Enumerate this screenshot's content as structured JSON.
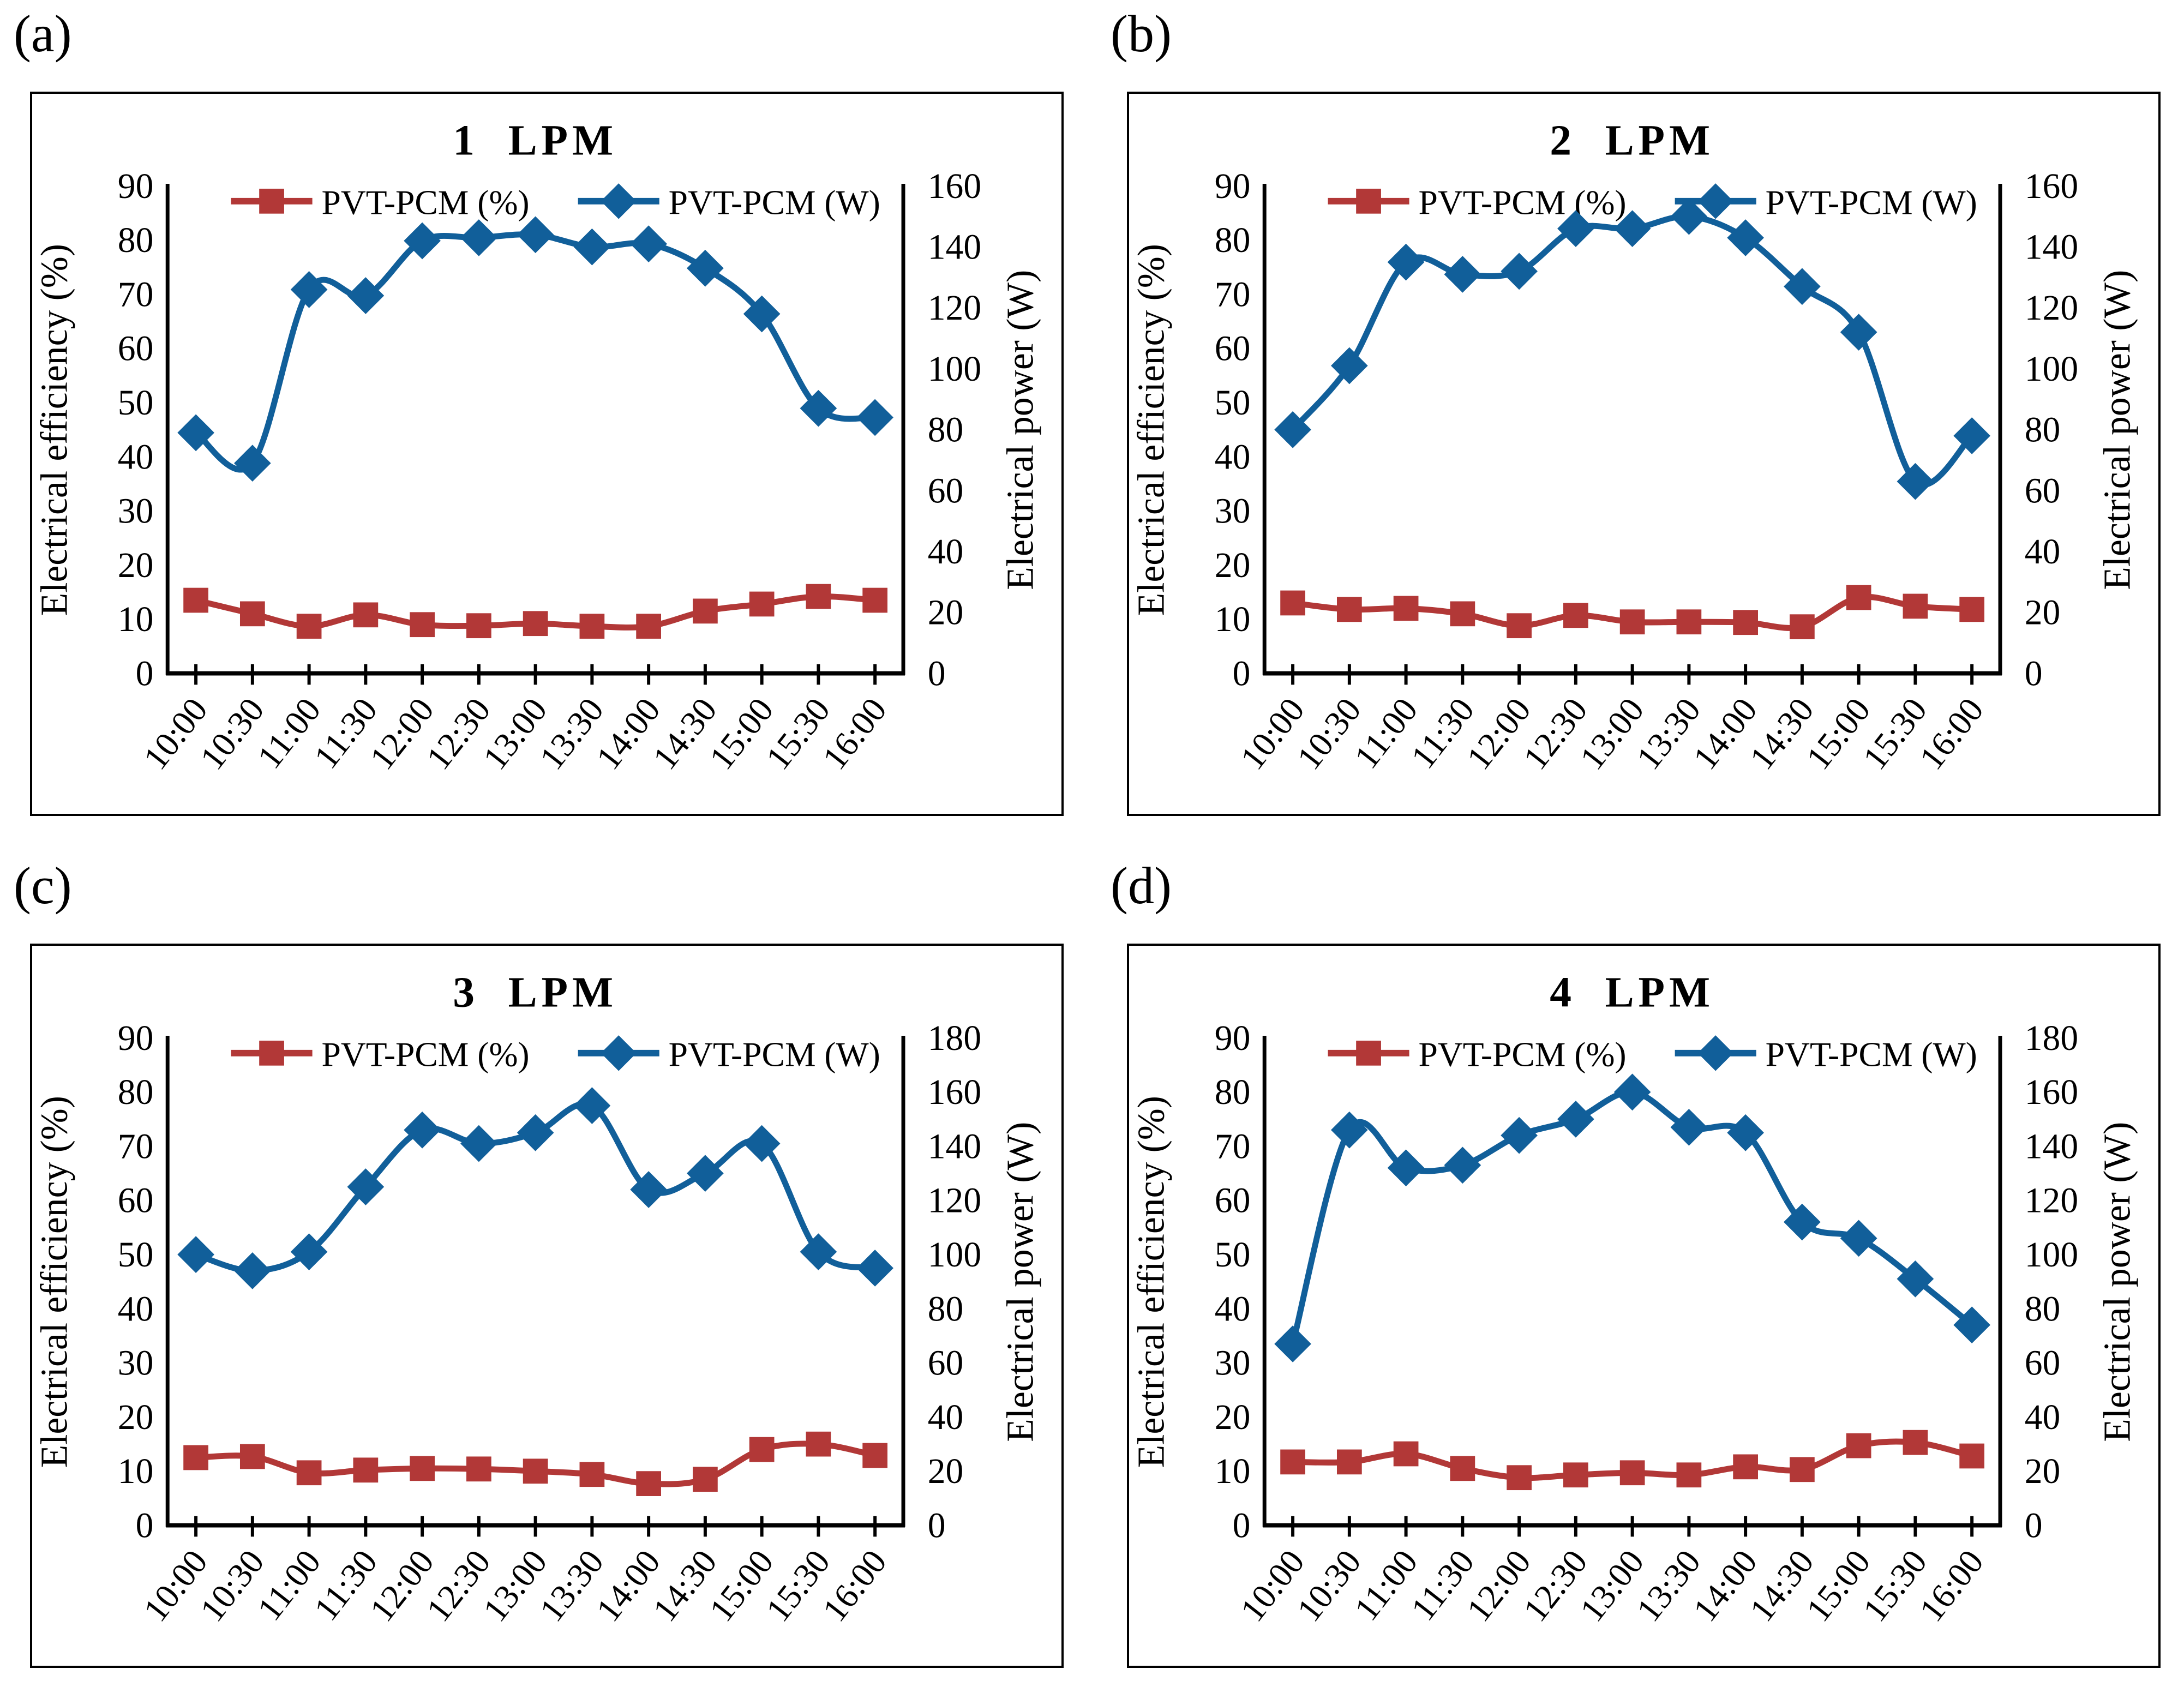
{
  "style": {
    "background": "#ffffff",
    "text_color": "#000000",
    "efficiency_color": "#b23837",
    "power_color": "#115f9a"
  },
  "chart_data": [
    {
      "type": "line",
      "panel_label": "(a)",
      "title": "1 LPM",
      "categories": [
        "10:00",
        "10:30",
        "11:00",
        "11:30",
        "12:00",
        "12:30",
        "13:00",
        "13:30",
        "14:00",
        "14:30",
        "15:00",
        "15:30",
        "16:00"
      ],
      "y_left": {
        "label": "Electrical efficiency (%)",
        "min": 0,
        "max": 90,
        "step": 10
      },
      "y_right": {
        "label": "Electrical power (W)",
        "min": 0,
        "max": 160,
        "step": 20
      },
      "legend_position": "top",
      "grid": false,
      "smooth": true,
      "series": [
        {
          "name": "PVT-PCM (%)",
          "axis": "left",
          "color": "#b23837",
          "marker": "square",
          "values": [
            13.5,
            11.0,
            8.7,
            10.8,
            9.0,
            8.8,
            9.2,
            8.7,
            8.7,
            11.5,
            12.8,
            14.2,
            13.5
          ]
        },
        {
          "name": "PVT-PCM (W)",
          "axis": "right",
          "color": "#115f9a",
          "marker": "diamond",
          "values": [
            79,
            69,
            126,
            124,
            142,
            143,
            144,
            140,
            141,
            133,
            118,
            87,
            84
          ]
        }
      ]
    },
    {
      "type": "line",
      "panel_label": "(b)",
      "title": "2 LPM",
      "categories": [
        "10:00",
        "10:30",
        "11:00",
        "11:30",
        "12:00",
        "12:30",
        "13:00",
        "13:30",
        "14:00",
        "14:30",
        "15:00",
        "15:30",
        "16:00"
      ],
      "y_left": {
        "label": "Electrical efficiency (%)",
        "min": 0,
        "max": 90,
        "step": 10
      },
      "y_right": {
        "label": "Electrical power (W)",
        "min": 0,
        "max": 160,
        "step": 20
      },
      "legend_position": "top",
      "grid": false,
      "smooth": true,
      "series": [
        {
          "name": "PVT-PCM (%)",
          "axis": "left",
          "color": "#b23837",
          "marker": "square",
          "values": [
            13.0,
            11.8,
            12.0,
            11.0,
            8.8,
            10.7,
            9.5,
            9.5,
            9.4,
            8.6,
            14.0,
            12.4,
            11.8
          ]
        },
        {
          "name": "PVT-PCM (W)",
          "axis": "right",
          "color": "#115f9a",
          "marker": "diamond",
          "values": [
            80,
            101,
            135,
            131,
            132,
            146,
            146,
            150,
            143,
            127,
            112,
            63,
            78
          ]
        }
      ]
    },
    {
      "type": "line",
      "panel_label": "(c)",
      "title": "3 LPM",
      "categories": [
        "10:00",
        "10:30",
        "11:00",
        "11:30",
        "12:00",
        "12:30",
        "13:00",
        "13:30",
        "14:00",
        "14:30",
        "15:00",
        "15:30",
        "16:00"
      ],
      "y_left": {
        "label": "Electrical efficiency (%)",
        "min": 0,
        "max": 90,
        "step": 10
      },
      "y_right": {
        "label": "Electrical power (W)",
        "min": 0,
        "max": 180,
        "step": 20
      },
      "legend_position": "top",
      "grid": false,
      "smooth": true,
      "series": [
        {
          "name": "PVT-PCM (%)",
          "axis": "left",
          "color": "#b23837",
          "marker": "square",
          "values": [
            12.5,
            12.7,
            9.7,
            10.2,
            10.5,
            10.4,
            10.0,
            9.4,
            7.7,
            8.5,
            14.0,
            15.0,
            12.9
          ]
        },
        {
          "name": "PVT-PCM (W)",
          "axis": "right",
          "color": "#115f9a",
          "marker": "diamond",
          "values": [
            100,
            94,
            101,
            125,
            146,
            141,
            145,
            155,
            124,
            130,
            141,
            101,
            95
          ]
        }
      ]
    },
    {
      "type": "line",
      "panel_label": "(d)",
      "title": "4 LPM",
      "categories": [
        "10:00",
        "10:30",
        "11:00",
        "11:30",
        "12:00",
        "12:30",
        "13:00",
        "13:30",
        "14:00",
        "14:30",
        "15:00",
        "15:30",
        "16:00"
      ],
      "y_left": {
        "label": "Electrical efficiency (%)",
        "min": 0,
        "max": 90,
        "step": 10
      },
      "y_right": {
        "label": "Electrical power (W)",
        "min": 0,
        "max": 180,
        "step": 20
      },
      "legend_position": "top",
      "grid": false,
      "smooth": true,
      "series": [
        {
          "name": "PVT-PCM (%)",
          "axis": "left",
          "color": "#b23837",
          "marker": "square",
          "values": [
            11.7,
            11.7,
            13.2,
            10.5,
            8.8,
            9.3,
            9.7,
            9.3,
            10.8,
            10.3,
            14.7,
            15.3,
            12.8
          ]
        },
        {
          "name": "PVT-PCM (W)",
          "axis": "right",
          "color": "#115f9a",
          "marker": "diamond",
          "values": [
            67,
            146,
            132,
            133,
            144,
            150,
            160,
            147,
            145,
            112,
            106,
            91,
            74
          ]
        }
      ]
    }
  ]
}
